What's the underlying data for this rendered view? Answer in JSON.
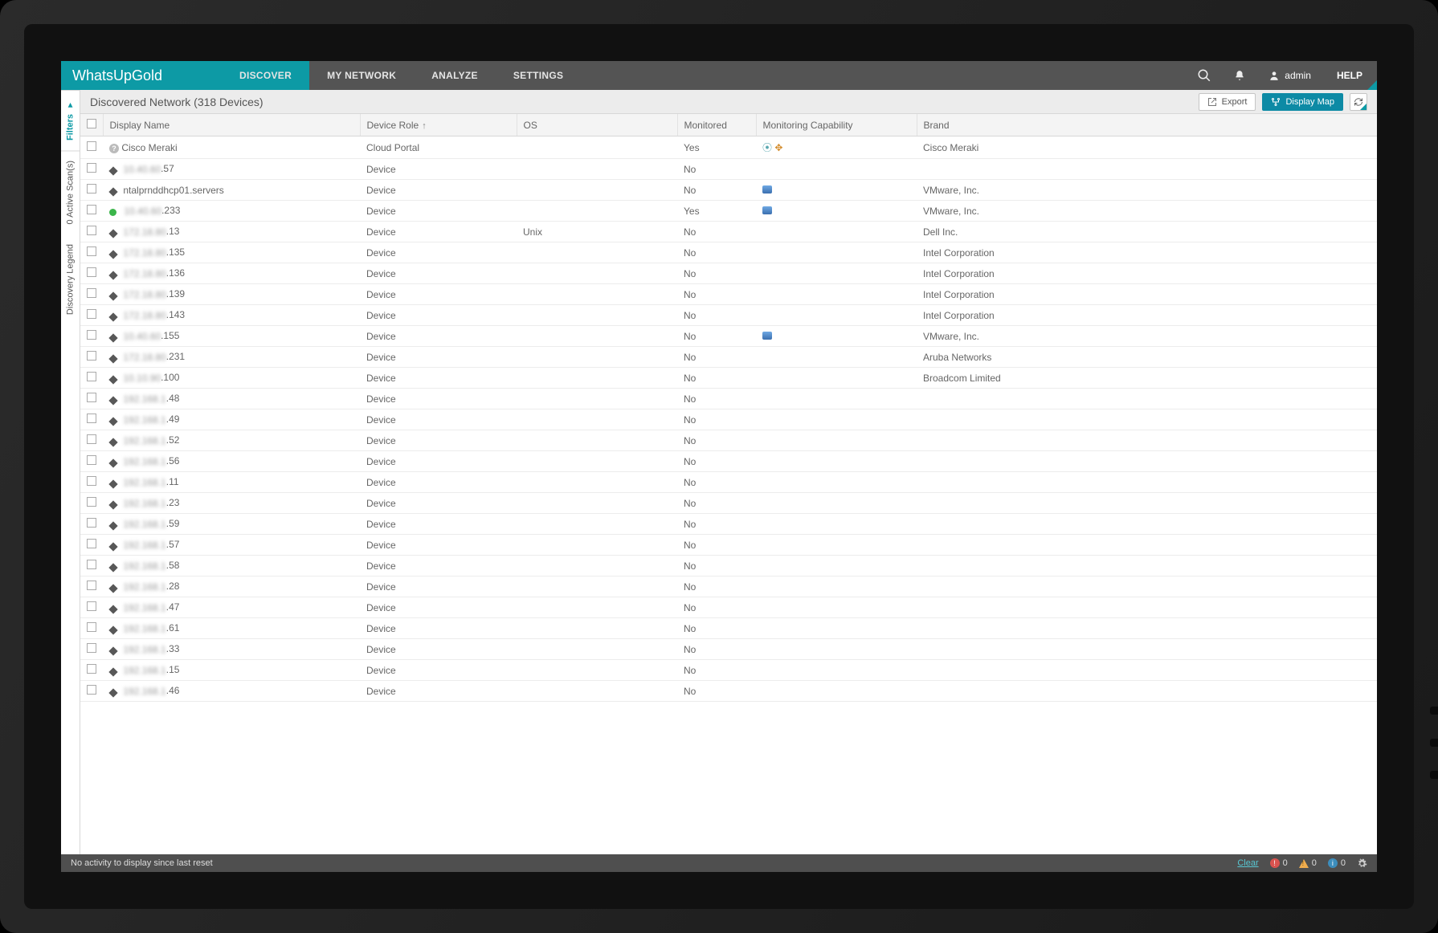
{
  "brand": {
    "prefix": "WhatsUp",
    "suffix": " Gold"
  },
  "nav": {
    "items": [
      {
        "label": "DISCOVER",
        "active": true
      },
      {
        "label": "MY NETWORK",
        "active": false
      },
      {
        "label": "ANALYZE",
        "active": false
      },
      {
        "label": "SETTINGS",
        "active": false
      }
    ],
    "user": "admin",
    "help": "HELP"
  },
  "header": {
    "title": "Discovered Network  (318 Devices)",
    "export": "Export",
    "displayMap": "Display Map"
  },
  "rails": {
    "filters": "Filters",
    "scans": "0 Active Scan(s)",
    "legend": "Discovery Legend"
  },
  "columns": {
    "name": "Display Name",
    "role": "Device Role",
    "os": "OS",
    "monitored": "Monitored",
    "capability": "Monitoring Capability",
    "brand": "Brand"
  },
  "rows": [
    {
      "icon": "cloud",
      "blurPrefix": "",
      "suffix": "Cisco Meraki",
      "role": "Cloud Portal",
      "os": "",
      "monitored": "Yes",
      "caps": [
        "wifi",
        "move"
      ],
      "brand": "Cisco Meraki"
    },
    {
      "icon": "diamond",
      "blurPrefix": "10.40.60",
      "suffix": ".57",
      "role": "Device",
      "os": "",
      "monitored": "No",
      "caps": [],
      "brand": ""
    },
    {
      "icon": "diamond",
      "blurPrefix": "",
      "suffix": "ntalprnddhcp01.servers",
      "role": "Device",
      "os": "",
      "monitored": "No",
      "caps": [
        "vm"
      ],
      "brand": "VMware, Inc."
    },
    {
      "icon": "green",
      "blurPrefix": "10.40.60",
      "suffix": ".233",
      "role": "Device",
      "os": "",
      "monitored": "Yes",
      "caps": [
        "vm"
      ],
      "brand": "VMware, Inc."
    },
    {
      "icon": "diamond",
      "blurPrefix": "172.18.80",
      "suffix": ".13",
      "role": "Device",
      "os": "Unix",
      "monitored": "No",
      "caps": [],
      "brand": "Dell Inc."
    },
    {
      "icon": "diamond",
      "blurPrefix": "172.18.80",
      "suffix": ".135",
      "role": "Device",
      "os": "",
      "monitored": "No",
      "caps": [],
      "brand": "Intel Corporation"
    },
    {
      "icon": "diamond",
      "blurPrefix": "172.18.80",
      "suffix": ".136",
      "role": "Device",
      "os": "",
      "monitored": "No",
      "caps": [],
      "brand": "Intel Corporation"
    },
    {
      "icon": "diamond",
      "blurPrefix": "172.18.80",
      "suffix": ".139",
      "role": "Device",
      "os": "",
      "monitored": "No",
      "caps": [],
      "brand": "Intel Corporation"
    },
    {
      "icon": "diamond",
      "blurPrefix": "172.18.80",
      "suffix": ".143",
      "role": "Device",
      "os": "",
      "monitored": "No",
      "caps": [],
      "brand": "Intel Corporation"
    },
    {
      "icon": "diamond",
      "blurPrefix": "10.40.60",
      "suffix": ".155",
      "role": "Device",
      "os": "",
      "monitored": "No",
      "caps": [
        "vm"
      ],
      "brand": "VMware, Inc."
    },
    {
      "icon": "diamond",
      "blurPrefix": "172.18.80",
      "suffix": ".231",
      "role": "Device",
      "os": "",
      "monitored": "No",
      "caps": [],
      "brand": "Aruba Networks"
    },
    {
      "icon": "diamond",
      "blurPrefix": "10.10.90",
      "suffix": ".100",
      "role": "Device",
      "os": "",
      "monitored": "No",
      "caps": [],
      "brand": "Broadcom Limited"
    },
    {
      "icon": "diamond",
      "blurPrefix": "192.168.1",
      "suffix": ".48",
      "role": "Device",
      "os": "",
      "monitored": "No",
      "caps": [],
      "brand": ""
    },
    {
      "icon": "diamond",
      "blurPrefix": "192.168.1",
      "suffix": ".49",
      "role": "Device",
      "os": "",
      "monitored": "No",
      "caps": [],
      "brand": ""
    },
    {
      "icon": "diamond",
      "blurPrefix": "192.168.1",
      "suffix": ".52",
      "role": "Device",
      "os": "",
      "monitored": "No",
      "caps": [],
      "brand": ""
    },
    {
      "icon": "diamond",
      "blurPrefix": "192.168.1",
      "suffix": ".56",
      "role": "Device",
      "os": "",
      "monitored": "No",
      "caps": [],
      "brand": ""
    },
    {
      "icon": "diamond",
      "blurPrefix": "192.168.1",
      "suffix": ".11",
      "role": "Device",
      "os": "",
      "monitored": "No",
      "caps": [],
      "brand": ""
    },
    {
      "icon": "diamond",
      "blurPrefix": "192.168.1",
      "suffix": ".23",
      "role": "Device",
      "os": "",
      "monitored": "No",
      "caps": [],
      "brand": ""
    },
    {
      "icon": "diamond",
      "blurPrefix": "192.168.1",
      "suffix": ".59",
      "role": "Device",
      "os": "",
      "monitored": "No",
      "caps": [],
      "brand": ""
    },
    {
      "icon": "diamond",
      "blurPrefix": "192.168.1",
      "suffix": ".57",
      "role": "Device",
      "os": "",
      "monitored": "No",
      "caps": [],
      "brand": ""
    },
    {
      "icon": "diamond",
      "blurPrefix": "192.168.1",
      "suffix": ".58",
      "role": "Device",
      "os": "",
      "monitored": "No",
      "caps": [],
      "brand": ""
    },
    {
      "icon": "diamond",
      "blurPrefix": "192.168.1",
      "suffix": ".28",
      "role": "Device",
      "os": "",
      "monitored": "No",
      "caps": [],
      "brand": ""
    },
    {
      "icon": "diamond",
      "blurPrefix": "192.168.1",
      "suffix": ".47",
      "role": "Device",
      "os": "",
      "monitored": "No",
      "caps": [],
      "brand": ""
    },
    {
      "icon": "diamond",
      "blurPrefix": "192.168.1",
      "suffix": ".61",
      "role": "Device",
      "os": "",
      "monitored": "No",
      "caps": [],
      "brand": ""
    },
    {
      "icon": "diamond",
      "blurPrefix": "192.168.1",
      "suffix": ".33",
      "role": "Device",
      "os": "",
      "monitored": "No",
      "caps": [],
      "brand": ""
    },
    {
      "icon": "diamond",
      "blurPrefix": "192.168.1",
      "suffix": ".15",
      "role": "Device",
      "os": "",
      "monitored": "No",
      "caps": [],
      "brand": ""
    },
    {
      "icon": "diamond",
      "blurPrefix": "192.168.1",
      "suffix": ".46",
      "role": "Device",
      "os": "",
      "monitored": "No",
      "caps": [],
      "brand": ""
    }
  ],
  "status": {
    "text": "No activity to display since last reset",
    "clear": "Clear",
    "error_count": "0",
    "warn_count": "0",
    "info_count": "0"
  },
  "colors": {
    "accent": "#0d9aa5",
    "primary_btn": "#0d8aa5",
    "header_bg": "#545454",
    "subheader_bg": "#ececec",
    "row_border": "#ececec"
  }
}
